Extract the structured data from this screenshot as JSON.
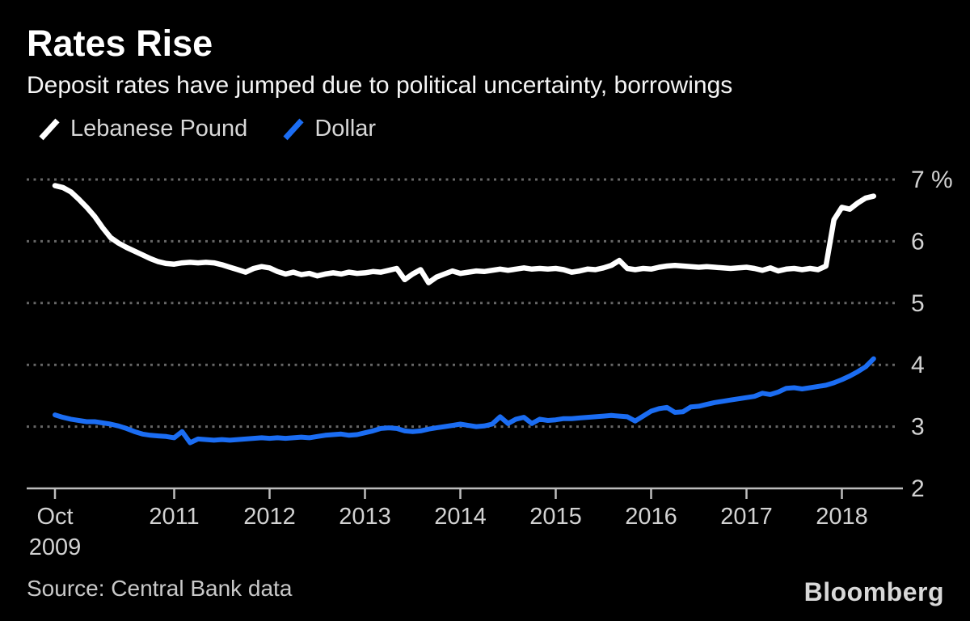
{
  "header": {
    "title": "Rates Rise",
    "subtitle": "Deposit rates have jumped due to political uncertainty, borrowings"
  },
  "legend": {
    "items": [
      {
        "label": "Lebanese Pound",
        "color": "#ffffff"
      },
      {
        "label": "Dollar",
        "color": "#1b6df3"
      }
    ]
  },
  "source": "Source: Central Bank data",
  "logo": "Bloomberg",
  "colors": {
    "background": "#000000",
    "lebanese_pound_line": "#ffffff",
    "dollar_line": "#1b6df3",
    "gridline": "#666666",
    "axis": "#bdbdbd",
    "axis_text": "#d2d2d2"
  },
  "chart_data": {
    "type": "line",
    "title": "Rates Rise",
    "subtitle": "Deposit rates have jumped due to political uncertainty, borrowings",
    "y_unit": "%",
    "ylim": [
      2,
      7.3
    ],
    "grid": "horizontal-dotted",
    "legend_position": "top-left",
    "x_frequency": "monthly",
    "x_start": "2009-10",
    "x_end": "2018-05",
    "x_start_year": 2009.75,
    "y_ticks": [
      {
        "value": 7,
        "label": "7 %"
      },
      {
        "value": 6,
        "label": "6"
      },
      {
        "value": 5,
        "label": "5"
      },
      {
        "value": 4,
        "label": "4"
      },
      {
        "value": 3,
        "label": "3"
      },
      {
        "value": 2,
        "label": "2"
      }
    ],
    "x_ticks": [
      {
        "year": 2009.75,
        "label": "Oct",
        "label2": "2009"
      },
      {
        "year": 2011,
        "label": "2011"
      },
      {
        "year": 2012,
        "label": "2012"
      },
      {
        "year": 2013,
        "label": "2013"
      },
      {
        "year": 2014,
        "label": "2014"
      },
      {
        "year": 2015,
        "label": "2015"
      },
      {
        "year": 2016,
        "label": "2016"
      },
      {
        "year": 2017,
        "label": "2017"
      },
      {
        "year": 2018,
        "label": "2018"
      }
    ],
    "series": [
      {
        "name": "Lebanese Pound",
        "color": "#ffffff",
        "values": [
          6.9,
          6.87,
          6.8,
          6.68,
          6.55,
          6.4,
          6.22,
          6.06,
          5.97,
          5.9,
          5.84,
          5.78,
          5.72,
          5.67,
          5.64,
          5.63,
          5.65,
          5.66,
          5.65,
          5.66,
          5.65,
          5.62,
          5.58,
          5.54,
          5.5,
          5.56,
          5.59,
          5.57,
          5.51,
          5.47,
          5.5,
          5.46,
          5.48,
          5.44,
          5.47,
          5.49,
          5.47,
          5.5,
          5.48,
          5.49,
          5.51,
          5.5,
          5.53,
          5.56,
          5.38,
          5.47,
          5.54,
          5.33,
          5.42,
          5.47,
          5.52,
          5.48,
          5.5,
          5.52,
          5.51,
          5.53,
          5.55,
          5.53,
          5.55,
          5.57,
          5.55,
          5.56,
          5.55,
          5.56,
          5.54,
          5.5,
          5.52,
          5.55,
          5.54,
          5.57,
          5.61,
          5.69,
          5.56,
          5.54,
          5.56,
          5.55,
          5.58,
          5.6,
          5.61,
          5.6,
          5.59,
          5.58,
          5.59,
          5.58,
          5.57,
          5.56,
          5.57,
          5.58,
          5.56,
          5.53,
          5.57,
          5.52,
          5.55,
          5.56,
          5.54,
          5.56,
          5.54,
          5.6,
          6.35,
          6.55,
          6.52,
          6.62,
          6.7,
          6.73
        ]
      },
      {
        "name": "Dollar",
        "color": "#1b6df3",
        "values": [
          3.19,
          3.15,
          3.12,
          3.1,
          3.08,
          3.08,
          3.06,
          3.04,
          3.01,
          2.97,
          2.92,
          2.88,
          2.86,
          2.85,
          2.84,
          2.82,
          2.92,
          2.74,
          2.8,
          2.79,
          2.78,
          2.79,
          2.78,
          2.79,
          2.8,
          2.81,
          2.82,
          2.81,
          2.82,
          2.81,
          2.82,
          2.83,
          2.82,
          2.84,
          2.86,
          2.87,
          2.88,
          2.86,
          2.87,
          2.9,
          2.93,
          2.97,
          2.98,
          2.97,
          2.93,
          2.92,
          2.93,
          2.96,
          2.98,
          3.0,
          3.02,
          3.04,
          3.02,
          3.0,
          3.01,
          3.04,
          3.16,
          3.05,
          3.12,
          3.15,
          3.05,
          3.12,
          3.1,
          3.11,
          3.13,
          3.13,
          3.14,
          3.15,
          3.16,
          3.17,
          3.18,
          3.17,
          3.16,
          3.09,
          3.17,
          3.25,
          3.29,
          3.31,
          3.23,
          3.24,
          3.32,
          3.33,
          3.36,
          3.39,
          3.41,
          3.43,
          3.45,
          3.47,
          3.49,
          3.54,
          3.52,
          3.56,
          3.62,
          3.63,
          3.61,
          3.63,
          3.65,
          3.67,
          3.71,
          3.76,
          3.82,
          3.89,
          3.97,
          4.1
        ]
      }
    ]
  }
}
